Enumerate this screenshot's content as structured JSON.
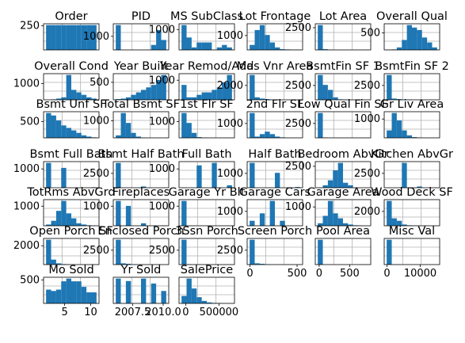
{
  "chart_data": {
    "type": "bar",
    "grid": true,
    "bar_color": "#1f77b4",
    "panels": [
      {
        "title": "Order",
        "values": [
          10,
          10,
          10,
          10,
          10,
          10,
          10,
          10,
          10,
          10
        ],
        "yticks": [
          {
            "v": 0.92,
            "t": "250"
          }
        ],
        "xticks": []
      },
      {
        "title": "PID",
        "values": [
          10,
          0,
          0,
          0,
          0,
          0,
          0,
          2,
          8,
          4
        ],
        "yticks": [
          {
            "v": 0.52,
            "t": "1000"
          }
        ],
        "xticks": []
      },
      {
        "title": "MS SubClass",
        "values": [
          10,
          5,
          1,
          3,
          3,
          3,
          0,
          1,
          2,
          1
        ],
        "yticks": [
          {
            "v": 0.78,
            "t": "1000"
          }
        ],
        "xticks": []
      },
      {
        "title": "Lot Frontage",
        "values": [
          2,
          8,
          10,
          6,
          3,
          1,
          0.3,
          0.2,
          0.1,
          0.1
        ],
        "yticks": [
          {
            "v": 0.55,
            "t": "1000"
          }
        ],
        "xticks": []
      },
      {
        "title": "Lot Area",
        "values": [
          10,
          0.3,
          0.1,
          0,
          0,
          0,
          0,
          0,
          0,
          0.05
        ],
        "yticks": [
          {
            "v": 0.85,
            "t": "2500"
          }
        ],
        "xticks": []
      },
      {
        "title": "Overall Qual",
        "values": [
          0.1,
          0.2,
          1,
          4,
          10,
          9,
          8,
          5,
          3,
          1
        ],
        "yticks": [
          {
            "v": 0.65,
            "t": "500"
          }
        ],
        "xticks": []
      },
      {
        "title": "Overall Cond",
        "values": [
          0,
          0.2,
          0.5,
          1,
          10,
          4,
          3,
          2,
          1,
          0.5
        ],
        "yticks": [
          {
            "v": 0.62,
            "t": "1000"
          }
        ],
        "xticks": []
      },
      {
        "title": "Year Built",
        "values": [
          0.3,
          0.5,
          1,
          2,
          3,
          4,
          5,
          6,
          8,
          10
        ],
        "yticks": [
          {
            "v": 0.67,
            "t": "500"
          }
        ],
        "xticks": []
      },
      {
        "title": "Year Remod/Add",
        "values": [
          6,
          1,
          1,
          2,
          3,
          3,
          4,
          5,
          7,
          10
        ],
        "yticks": [
          {
            "v": 0.75,
            "t": "1000"
          }
        ],
        "xticks": []
      },
      {
        "title": "Mas Vnr Area",
        "values": [
          10,
          1,
          0.5,
          0.3,
          0.1,
          0.1,
          0,
          0,
          0,
          0
        ],
        "yticks": [
          {
            "v": 0.55,
            "t": "2000"
          }
        ],
        "xticks": []
      },
      {
        "title": "BsmtFin SF 1",
        "values": [
          10,
          6,
          4,
          1,
          0.2,
          0.1,
          0,
          0,
          0,
          0
        ],
        "yticks": [
          {
            "v": 0.55,
            "t": "2500"
          }
        ],
        "xticks": []
      },
      {
        "title": "BsmtFin SF 2",
        "values": [
          10,
          0.5,
          0.3,
          0.1,
          0.1,
          0,
          0,
          0,
          0,
          0
        ],
        "yticks": [
          {
            "v": 0.55,
            "t": "2500"
          }
        ],
        "xticks": []
      },
      {
        "title": "Bsmt Unf SF",
        "values": [
          10,
          9,
          7,
          5,
          4,
          3,
          2,
          1,
          0.5,
          0.2
        ],
        "yticks": [
          {
            "v": 0.62,
            "t": "500"
          }
        ],
        "xticks": []
      },
      {
        "title": "Total Bsmt SF",
        "values": [
          1,
          10,
          6,
          2,
          0.5,
          0.1,
          0,
          0,
          0,
          0
        ],
        "yticks": [
          {
            "v": 0.65,
            "t": "1000"
          }
        ],
        "xticks": []
      },
      {
        "title": "1st Flr SF",
        "values": [
          10,
          6,
          2,
          0.3,
          0.1,
          0,
          0,
          0,
          0,
          0
        ],
        "yticks": [
          {
            "v": 0.62,
            "t": "1000"
          }
        ],
        "xticks": []
      },
      {
        "title": "2nd Flr SF",
        "values": [
          10,
          0.5,
          1.5,
          2.5,
          1.5,
          0.5,
          0.2,
          0,
          0,
          0
        ],
        "yticks": [
          {
            "v": 0.55,
            "t": "1000"
          }
        ],
        "xticks": []
      },
      {
        "title": "Low Qual Fin SF",
        "values": [
          10,
          0.1,
          0,
          0,
          0,
          0,
          0,
          0,
          0,
          0
        ],
        "yticks": [
          {
            "v": 0.55,
            "t": "2500"
          }
        ],
        "xticks": []
      },
      {
        "title": "Gr Liv Area",
        "values": [
          3,
          10,
          7,
          3,
          1,
          0.3,
          0.1,
          0,
          0,
          0
        ],
        "yticks": [
          {
            "v": 0.72,
            "t": "1000"
          }
        ],
        "xticks": []
      },
      {
        "title": "Bsmt Full Bath",
        "values": [
          10,
          0,
          0,
          8,
          0,
          0,
          0,
          0,
          0,
          0.2
        ],
        "yticks": [
          {
            "v": 0.72,
            "t": "1000"
          }
        ],
        "xticks": []
      },
      {
        "title": "Bsmt Half Bath",
        "values": [
          10,
          0,
          0,
          0,
          0,
          0.5,
          0,
          0,
          0,
          0.1
        ],
        "yticks": [
          {
            "v": 0.55,
            "t": "2500"
          }
        ],
        "xticks": []
      },
      {
        "title": "Full Bath",
        "values": [
          0.1,
          0,
          0,
          9,
          0,
          0,
          10,
          0,
          0,
          1
        ],
        "yticks": [
          {
            "v": 0.72,
            "t": "1000"
          }
        ],
        "xticks": []
      },
      {
        "title": "Half Bath",
        "values": [
          10,
          0,
          0,
          0,
          0,
          6,
          0,
          0,
          0,
          0.3
        ],
        "yticks": [
          {
            "v": 0.55,
            "t": "1000"
          }
        ],
        "xticks": []
      },
      {
        "title": "Bedroom AbvGr",
        "values": [
          0.1,
          1,
          3,
          7,
          10,
          2,
          1,
          0,
          0,
          0
        ],
        "yticks": [
          {
            "v": 0.82,
            "t": "2500"
          }
        ],
        "xticks": []
      },
      {
        "title": "Kitchen AbvGr",
        "values": [
          0,
          0,
          0,
          10,
          0,
          0,
          0.5,
          0,
          0,
          0
        ],
        "yticks": [
          {
            "v": 0.55,
            "t": "2500"
          }
        ],
        "xticks": []
      },
      {
        "title": "TotRms AbvGrd",
        "values": [
          0.5,
          2,
          6,
          10,
          5,
          3,
          1,
          0.5,
          0.2,
          0.1
        ],
        "yticks": [
          {
            "v": 0.75,
            "t": "1000"
          }
        ],
        "xticks": []
      },
      {
        "title": "Fireplaces",
        "values": [
          10,
          0,
          8,
          0,
          0,
          1,
          0,
          0,
          0,
          0.1
        ],
        "yticks": [
          {
            "v": 0.75,
            "t": "1000"
          }
        ],
        "xticks": []
      },
      {
        "title": "Garage Yr Blt",
        "values": [
          10,
          0,
          0,
          0,
          0,
          0,
          0,
          0,
          0,
          0
        ],
        "yticks": [
          {
            "v": 0.75,
            "t": "1000"
          }
        ],
        "xticks": []
      },
      {
        "title": "Garage Cars",
        "values": [
          2,
          0,
          5,
          0,
          10,
          0,
          2,
          0,
          0,
          0.1
        ],
        "yticks": [
          {
            "v": 0.55,
            "t": "1000"
          }
        ],
        "xticks": []
      },
      {
        "title": "Garage Area",
        "values": [
          1,
          4,
          10,
          5,
          3,
          1,
          0.5,
          0.2,
          0.1,
          0
        ],
        "yticks": [
          {
            "v": 0.72,
            "t": "1000"
          }
        ],
        "xticks": []
      },
      {
        "title": "Wood Deck SF",
        "values": [
          10,
          3,
          2,
          0.5,
          0.2,
          0.1,
          0,
          0,
          0,
          0
        ],
        "yticks": [
          {
            "v": 0.55,
            "t": "2000"
          }
        ],
        "xticks": []
      },
      {
        "title": "Open Porch SF",
        "values": [
          10,
          2,
          0.5,
          0.2,
          0.1,
          0,
          0,
          0,
          0,
          0
        ],
        "yticks": [
          {
            "v": 0.72,
            "t": "2000"
          }
        ],
        "xticks": []
      },
      {
        "title": "Enclosed Porch",
        "values": [
          10,
          0.5,
          0.3,
          0.1,
          0,
          0,
          0,
          0,
          0,
          0
        ],
        "yticks": [
          {
            "v": 0.55,
            "t": "2500"
          }
        ],
        "xticks": []
      },
      {
        "title": "3Ssn Porch",
        "values": [
          10,
          0.1,
          0,
          0,
          0,
          0,
          0,
          0,
          0,
          0
        ],
        "yticks": [
          {
            "v": 0.55,
            "t": "2500"
          }
        ],
        "xticks": []
      },
      {
        "title": "Screen Porch",
        "values": [
          10,
          0.5,
          0.3,
          0.1,
          0,
          0,
          0,
          0,
          0,
          0
        ],
        "yticks": [
          {
            "v": 0.55,
            "t": "2500"
          }
        ],
        "xticks": [
          {
            "v": 0.05,
            "t": "0"
          },
          {
            "v": 0.9,
            "t": "500"
          }
        ]
      },
      {
        "title": "Pool Area",
        "values": [
          10,
          0,
          0,
          0,
          0,
          0,
          0,
          0,
          0,
          0.05
        ],
        "yticks": [],
        "xticks": [
          {
            "v": 0.07,
            "t": "0"
          },
          {
            "v": 0.62,
            "t": "500"
          }
        ]
      },
      {
        "title": "Misc Val",
        "values": [
          10,
          0.05,
          0,
          0,
          0,
          0,
          0,
          0,
          0,
          0
        ],
        "yticks": [],
        "xticks": [
          {
            "v": 0.05,
            "t": "0"
          },
          {
            "v": 0.65,
            "t": "10000"
          }
        ]
      },
      {
        "title": "Mo Sold",
        "values": [
          5,
          4.5,
          5,
          8,
          9,
          8,
          8,
          6,
          4,
          4
        ],
        "yticks": [
          {
            "v": 0.9,
            "t": "500"
          }
        ],
        "xticks": [
          {
            "v": 0.38,
            "t": "5"
          },
          {
            "v": 0.85,
            "t": "10"
          }
        ]
      },
      {
        "title": "Yr Sold",
        "values": [
          10,
          0,
          9,
          0,
          0,
          10,
          0,
          8,
          0,
          5
        ],
        "yticks": [],
        "xticks": [
          {
            "v": 0.35,
            "t": "2007.5"
          },
          {
            "v": 0.9,
            "t": "2010.0"
          }
        ]
      },
      {
        "title": "SalePrice",
        "values": [
          3,
          10,
          6,
          2.5,
          1,
          0.4,
          0.2,
          0.1,
          0,
          0
        ],
        "yticks": [],
        "xticks": [
          {
            "v": 0.12,
            "t": "0"
          },
          {
            "v": 0.72,
            "t": "500000"
          }
        ]
      }
    ]
  }
}
